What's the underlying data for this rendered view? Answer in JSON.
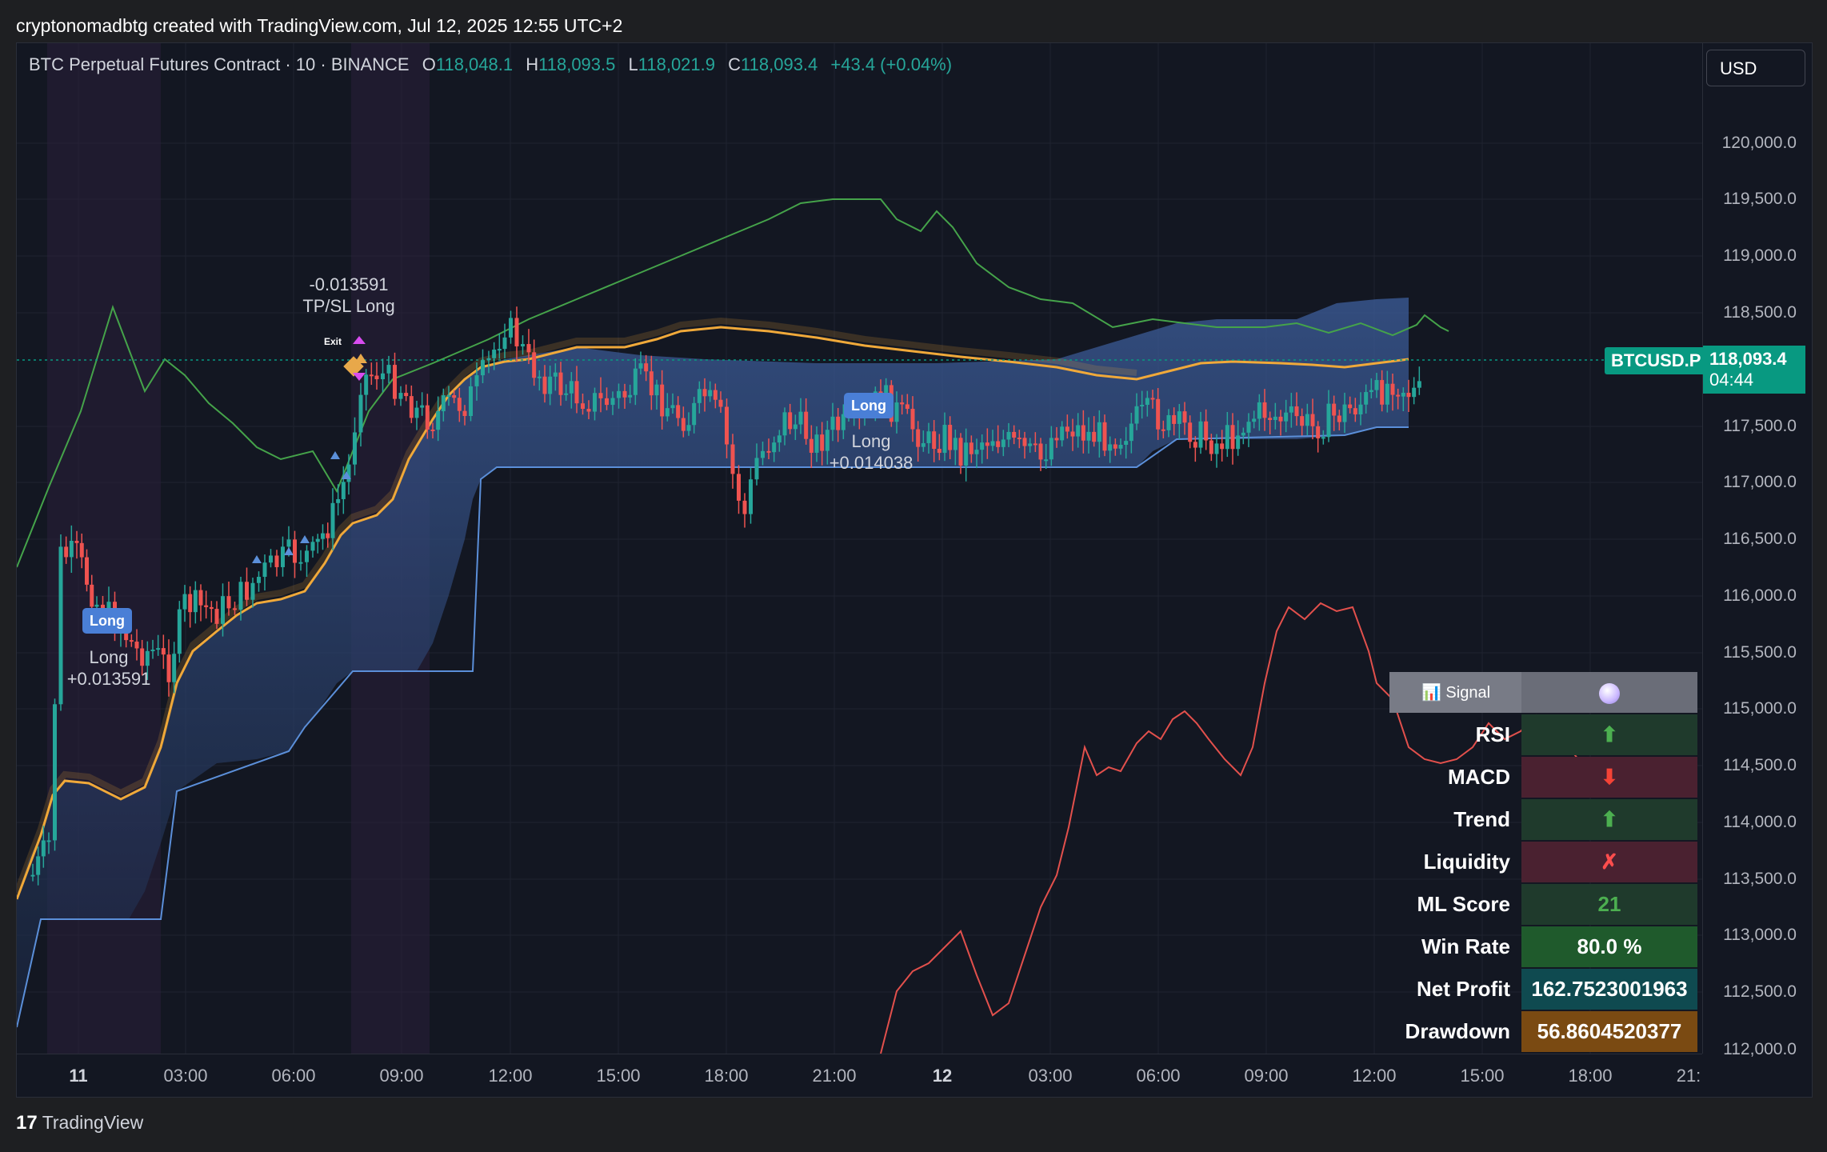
{
  "header": {
    "attribution": "cryptonomadbtg created with TradingView.com, Jul 12, 2025 12:55 UTC+2"
  },
  "legend": {
    "symbol": "BTC Perpetual Futures Contract · 10 · BINANCE",
    "o_label": "O",
    "o_value": "118,048.1",
    "h_label": "H",
    "h_value": "118,093.5",
    "l_label": "L",
    "l_value": "118,021.9",
    "c_label": "C",
    "c_value": "118,093.4",
    "change": "+43.4 (+0.04%)"
  },
  "currency_button": "USD",
  "price_axis": {
    "ticks": [
      "120,000.0",
      "119,500.0",
      "119,000.0",
      "118,500.0",
      "117,500.0",
      "117,000.0",
      "116,500.0",
      "116,000.0",
      "115,500.0",
      "115,000.0",
      "114,500.0",
      "114,000.0",
      "113,500.0",
      "113,000.0",
      "112,500.0",
      "112,000.0"
    ]
  },
  "time_axis": {
    "ticks": [
      "11",
      "03:00",
      "06:00",
      "09:00",
      "12:00",
      "15:00",
      "18:00",
      "21:00",
      "12",
      "03:00",
      "06:00",
      "09:00",
      "12:00",
      "15:00",
      "18:00",
      "21:"
    ]
  },
  "current_price": {
    "symbol_tag": "BTCUSD.P",
    "price": "118,093.4",
    "countdown": "04:44"
  },
  "annotations": [
    {
      "line1": "-0.013591",
      "line2": "TP/SL Long"
    },
    {
      "line1": "Long",
      "line2": "+0.013591"
    },
    {
      "line1": "Long",
      "line2": "+0.014038"
    }
  ],
  "badges": {
    "long": "Long",
    "exit": "Exit"
  },
  "signal_table": {
    "title": "📊 Signal",
    "rows": [
      {
        "label": "RSI",
        "value": "⬆",
        "kind": "up"
      },
      {
        "label": "MACD",
        "value": "⬇",
        "kind": "down"
      },
      {
        "label": "Trend",
        "value": "⬆",
        "kind": "up"
      },
      {
        "label": "Liquidity",
        "value": "✗",
        "kind": "cross"
      },
      {
        "label": "ML Score",
        "value": "21",
        "kind": "score"
      },
      {
        "label": "Win Rate",
        "value": "80.0 %",
        "kind": "win"
      },
      {
        "label": "Net Profit",
        "value": "162.7523001963",
        "kind": "profit"
      },
      {
        "label": "Drawdown",
        "value": "56.8604520377",
        "kind": "dd"
      }
    ]
  },
  "colors": {
    "up": "#26a69a",
    "down": "#ef5350",
    "background": "#131722",
    "accent": "#089981"
  },
  "footer": {
    "brand": "TradingView"
  }
}
